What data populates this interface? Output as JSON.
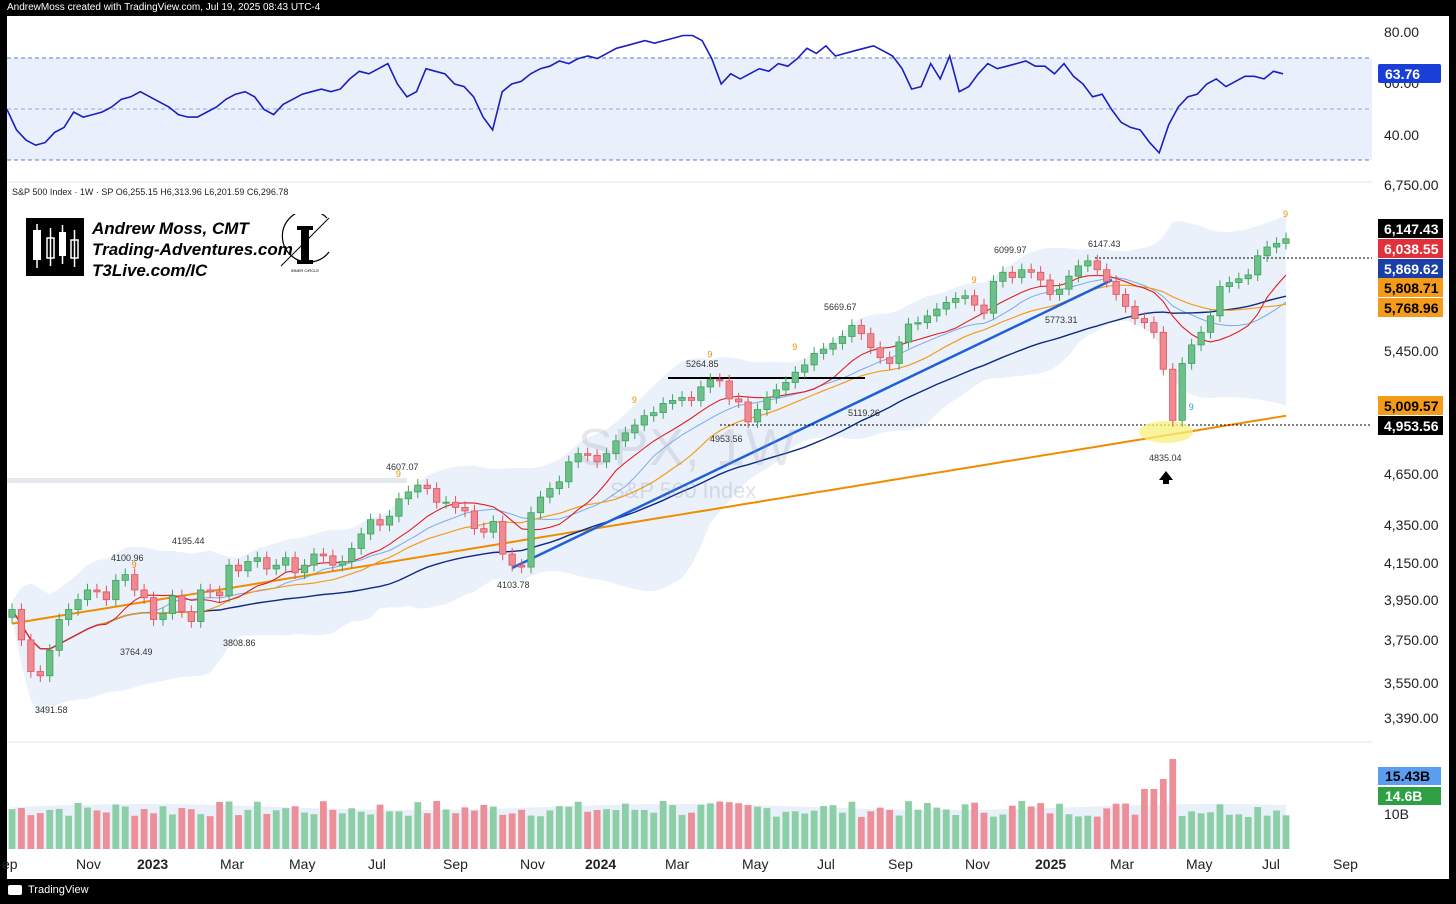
{
  "header": {
    "created_line": "AndrewMoss created with TradingView.com, Jul 19, 2025 08:43 UTC-4"
  },
  "legend": {
    "line": "S&P 500 Index · 1W · SP   O6,255.15  H6,313.96  L6,201.59  C6,296.78"
  },
  "watermark": {
    "symbol": "SPX, 1W",
    "name": "S&P 500 Index"
  },
  "brand": {
    "name": "Andrew Moss, CMT",
    "site": "Trading-Adventures.com",
    "link": "T3Live.com/IC",
    "ic_logo_text": "INNER CIRCLE"
  },
  "footer": {
    "label": "TradingView"
  },
  "rsi": {
    "ticks": [
      "80.00",
      "60.00",
      "40.00"
    ],
    "current": "63.76",
    "ylim": [
      27,
      85
    ],
    "values": [
      50,
      42,
      38,
      36,
      37,
      41,
      43,
      49,
      47,
      48,
      49,
      51,
      54,
      55,
      57,
      55,
      53,
      51,
      48,
      47,
      47,
      49,
      51,
      54,
      56,
      57,
      55,
      50,
      48,
      52,
      54,
      56,
      57,
      58,
      57,
      58,
      62,
      65,
      64,
      66,
      68,
      60,
      55,
      57,
      66,
      65,
      64,
      60,
      59,
      55,
      47,
      42,
      57,
      60,
      61,
      64,
      66,
      67,
      69,
      68,
      70,
      71,
      70,
      72,
      74,
      75,
      76,
      77,
      76,
      77,
      78,
      79,
      79,
      77,
      70,
      60,
      64,
      62,
      64,
      66,
      65,
      68,
      67,
      70,
      74,
      72,
      75,
      71,
      72,
      73,
      74,
      75,
      73,
      71,
      66,
      58,
      59,
      68,
      62,
      71,
      57,
      59,
      64,
      68,
      66,
      67,
      68,
      69,
      67,
      67,
      64,
      68,
      63,
      60,
      55,
      56,
      50,
      45,
      43,
      42,
      37,
      33,
      44,
      51,
      55,
      56,
      60,
      62,
      59,
      61,
      63,
      63,
      62,
      65,
      64
    ]
  },
  "price_axis": {
    "ticks": [
      "6,750.00",
      "5,450.00",
      "4,650.00",
      "4,350.00",
      "4,150.00",
      "3,950.00",
      "3,750.00",
      "3,550.00",
      "3,390.00"
    ]
  },
  "badges": [
    "6,147.43",
    "6,038.55",
    "5,869.62",
    "5,808.71",
    "5,768.96",
    "5,009.57",
    "4,953.56"
  ],
  "annotations": [
    "3491.58",
    "3764.49",
    "4100.96",
    "4195.44",
    "3808.86",
    "4607.07",
    "4103.78",
    "5264.85",
    "4953.56",
    "5669.67",
    "5119.26",
    "6099.97",
    "5773.31",
    "6147.43",
    "4835.04"
  ],
  "td_markers": [
    "9",
    "9",
    "9",
    "9",
    "9",
    "9",
    "9",
    "9",
    "9"
  ],
  "volume": {
    "ma_label": "15.43B",
    "current_label": "14.6B",
    "tick": "10B"
  },
  "dates": [
    "ep",
    "Nov",
    "2023",
    "Mar",
    "May",
    "Jul",
    "Sep",
    "Nov",
    "2024",
    "Mar",
    "May",
    "Jul",
    "Sep",
    "Nov",
    "2025",
    "Mar",
    "May",
    "Jul",
    "Sep"
  ],
  "chart_data": {
    "type": "candlestick",
    "title": "S&P 500 Index · 1W · SP",
    "symbol": "SPX",
    "interval": "1W",
    "ohlc_last": {
      "open": 6255.15,
      "high": 6313.96,
      "low": 6201.59,
      "close": 6296.78
    },
    "price_scale": "log",
    "ylim": [
      3390,
      6750
    ],
    "x_range": [
      "2022-09",
      "2025-09"
    ],
    "closes": [
      3900,
      3750,
      3600,
      3580,
      3700,
      3850,
      3900,
      3950,
      4000,
      3990,
      3950,
      4050,
      4080,
      4000,
      3960,
      3850,
      3880,
      3970,
      3890,
      3840,
      4000,
      3990,
      3970,
      4130,
      4100,
      4150,
      4170,
      4110,
      4130,
      4170,
      4090,
      4130,
      4190,
      4180,
      4130,
      4150,
      4220,
      4300,
      4380,
      4350,
      4400,
      4500,
      4540,
      4580,
      4560,
      4480,
      4480,
      4450,
      4430,
      4330,
      4310,
      4370,
      4190,
      4130,
      4120,
      4420,
      4510,
      4560,
      4600,
      4720,
      4770,
      4760,
      4720,
      4770,
      4850,
      4900,
      4950,
      5010,
      5030,
      5090,
      5110,
      5130,
      5110,
      5200,
      5250,
      5240,
      5120,
      5100,
      4970,
      5050,
      5130,
      5180,
      5230,
      5300,
      5350,
      5430,
      5460,
      5500,
      5550,
      5630,
      5570,
      5470,
      5400,
      5360,
      5510,
      5640,
      5650,
      5700,
      5750,
      5800,
      5830,
      5850,
      5780,
      5720,
      5960,
      6030,
      5990,
      6050,
      6030,
      5970,
      5860,
      5900,
      6000,
      6080,
      6120,
      6050,
      5960,
      5860,
      5770,
      5680,
      5650,
      5580,
      5320,
      4980,
      5360,
      5490,
      5580,
      5700,
      5920,
      5950,
      5980,
      6010,
      6160,
      6230,
      6260,
      6297
    ],
    "annotations": {
      "3491.58": "low Oct 2022",
      "4103.78": "low Oct 2023",
      "6147.43": "high Feb 2025",
      "4835.04": "low Apr 2025"
    },
    "moving_averages": [
      {
        "value": 6038.55
      },
      {
        "value": 5869.62
      },
      {
        "value": 5808.71
      },
      {
        "value": 5768.96
      },
      {
        "value": 5009.57
      }
    ],
    "levels": [
      6147.43,
      4953.56
    ],
    "rsi_current": 63.76,
    "volume": {
      "ma": "15.43B",
      "current": "14.6B"
    }
  }
}
